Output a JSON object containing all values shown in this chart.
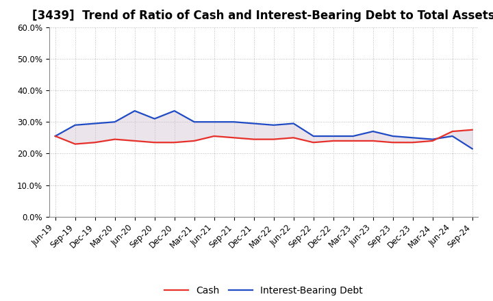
{
  "title": "[3439]  Trend of Ratio of Cash and Interest-Bearing Debt to Total Assets",
  "x_labels": [
    "Jun-19",
    "Sep-19",
    "Dec-19",
    "Mar-20",
    "Jun-20",
    "Sep-20",
    "Dec-20",
    "Mar-21",
    "Jun-21",
    "Sep-21",
    "Dec-21",
    "Mar-22",
    "Jun-22",
    "Sep-22",
    "Dec-22",
    "Mar-23",
    "Jun-23",
    "Sep-23",
    "Dec-23",
    "Mar-24",
    "Jun-24",
    "Sep-24"
  ],
  "cash": [
    25.5,
    23.0,
    23.5,
    24.5,
    24.0,
    23.5,
    23.5,
    24.0,
    25.5,
    25.0,
    24.5,
    24.5,
    25.0,
    23.5,
    24.0,
    24.0,
    24.0,
    23.5,
    23.5,
    24.0,
    27.0,
    27.5
  ],
  "ibd": [
    25.5,
    29.0,
    29.5,
    30.0,
    33.5,
    31.0,
    33.5,
    30.0,
    30.0,
    30.0,
    29.5,
    29.0,
    29.5,
    25.5,
    25.5,
    25.5,
    27.0,
    25.5,
    25.0,
    24.5,
    25.5,
    21.5
  ],
  "cash_color": "#e8302a",
  "ibd_color": "#1f4bc4",
  "fill_color": "#c8b4c8",
  "background_color": "#ffffff",
  "grid_color": "#bbbbbb",
  "ylim": [
    0,
    60
  ],
  "yticks": [
    0,
    10,
    20,
    30,
    40,
    50,
    60
  ],
  "legend_cash": "Cash",
  "legend_ibd": "Interest-Bearing Debt",
  "title_fontsize": 12,
  "axis_fontsize": 8.5,
  "legend_fontsize": 10
}
